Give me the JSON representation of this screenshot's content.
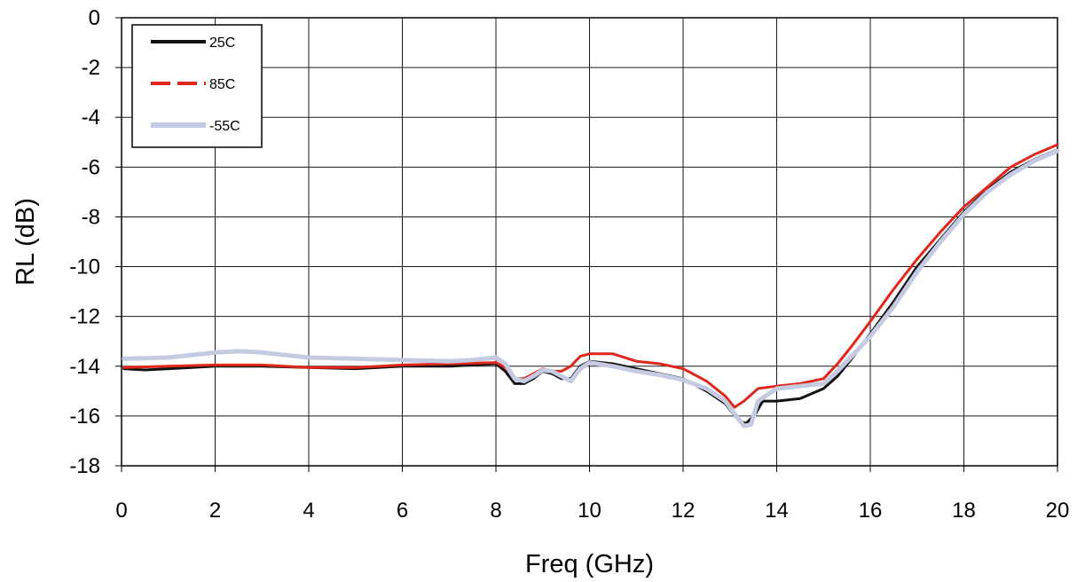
{
  "chart_data": {
    "type": "line",
    "title": "",
    "xlabel": "Freq (GHz)",
    "ylabel": "RL (dB)",
    "xlim": [
      0,
      20
    ],
    "ylim": [
      -18,
      0
    ],
    "x_ticks": [
      0,
      2,
      4,
      6,
      8,
      10,
      12,
      14,
      16,
      18,
      20
    ],
    "y_ticks": [
      0,
      -2,
      -4,
      -6,
      -8,
      -10,
      -12,
      -14,
      -16,
      -18
    ],
    "grid": true,
    "legend_position": "top-left",
    "series": [
      {
        "name": "25C",
        "color": "#111111",
        "style": "solid",
        "points": [
          [
            0.05,
            -14.1
          ],
          [
            0.5,
            -14.15
          ],
          [
            1.0,
            -14.1
          ],
          [
            1.5,
            -14.05
          ],
          [
            2.0,
            -14.0
          ],
          [
            3.0,
            -14.0
          ],
          [
            4.0,
            -14.05
          ],
          [
            5.0,
            -14.1
          ],
          [
            6.0,
            -14.0
          ],
          [
            7.0,
            -14.0
          ],
          [
            7.5,
            -13.95
          ],
          [
            8.0,
            -13.9
          ],
          [
            8.2,
            -14.2
          ],
          [
            8.4,
            -14.7
          ],
          [
            8.6,
            -14.7
          ],
          [
            8.8,
            -14.5
          ],
          [
            9.0,
            -14.2
          ],
          [
            9.2,
            -14.3
          ],
          [
            9.4,
            -14.5
          ],
          [
            9.6,
            -14.5
          ],
          [
            9.8,
            -14.0
          ],
          [
            10.0,
            -13.8
          ],
          [
            10.5,
            -13.9
          ],
          [
            11.0,
            -14.1
          ],
          [
            11.5,
            -14.3
          ],
          [
            12.0,
            -14.5
          ],
          [
            12.5,
            -15.0
          ],
          [
            12.9,
            -15.5
          ],
          [
            13.2,
            -16.2
          ],
          [
            13.35,
            -16.3
          ],
          [
            13.55,
            -15.9
          ],
          [
            13.7,
            -15.4
          ],
          [
            14.0,
            -15.4
          ],
          [
            14.5,
            -15.3
          ],
          [
            15.0,
            -14.9
          ],
          [
            15.3,
            -14.4
          ],
          [
            15.6,
            -13.7
          ],
          [
            16.0,
            -12.7
          ],
          [
            16.5,
            -11.4
          ],
          [
            17.0,
            -10.0
          ],
          [
            17.5,
            -8.9
          ],
          [
            18.0,
            -7.8
          ],
          [
            18.5,
            -6.9
          ],
          [
            19.0,
            -6.2
          ],
          [
            19.5,
            -5.7
          ],
          [
            20.0,
            -5.3
          ]
        ]
      },
      {
        "name": "85C",
        "color": "#e1261c",
        "style": "dashed",
        "points": [
          [
            0.05,
            -14.05
          ],
          [
            1.0,
            -14.0
          ],
          [
            2.0,
            -13.95
          ],
          [
            3.0,
            -13.95
          ],
          [
            4.0,
            -14.05
          ],
          [
            5.0,
            -14.05
          ],
          [
            6.0,
            -13.95
          ],
          [
            7.0,
            -13.9
          ],
          [
            8.0,
            -13.85
          ],
          [
            8.2,
            -14.05
          ],
          [
            8.4,
            -14.5
          ],
          [
            8.6,
            -14.5
          ],
          [
            8.8,
            -14.3
          ],
          [
            9.0,
            -14.1
          ],
          [
            9.2,
            -14.2
          ],
          [
            9.4,
            -14.2
          ],
          [
            9.6,
            -14.0
          ],
          [
            9.8,
            -13.6
          ],
          [
            10.0,
            -13.5
          ],
          [
            10.5,
            -13.5
          ],
          [
            11.0,
            -13.8
          ],
          [
            11.5,
            -13.9
          ],
          [
            12.0,
            -14.1
          ],
          [
            12.5,
            -14.6
          ],
          [
            12.9,
            -15.2
          ],
          [
            13.1,
            -15.65
          ],
          [
            13.3,
            -15.4
          ],
          [
            13.6,
            -14.9
          ],
          [
            14.0,
            -14.8
          ],
          [
            14.5,
            -14.7
          ],
          [
            15.0,
            -14.5
          ],
          [
            15.3,
            -13.9
          ],
          [
            15.6,
            -13.2
          ],
          [
            16.0,
            -12.2
          ],
          [
            16.5,
            -10.9
          ],
          [
            17.0,
            -9.7
          ],
          [
            17.5,
            -8.6
          ],
          [
            18.0,
            -7.6
          ],
          [
            18.5,
            -6.8
          ],
          [
            19.0,
            -6.0
          ],
          [
            19.5,
            -5.5
          ],
          [
            20.0,
            -5.1
          ]
        ]
      },
      {
        "name": "-55C",
        "color": "#c4cae2",
        "style": "solid",
        "points": [
          [
            0.05,
            -13.7
          ],
          [
            1.0,
            -13.65
          ],
          [
            2.0,
            -13.45
          ],
          [
            2.5,
            -13.4
          ],
          [
            3.0,
            -13.45
          ],
          [
            4.0,
            -13.65
          ],
          [
            5.0,
            -13.7
          ],
          [
            6.0,
            -13.75
          ],
          [
            7.0,
            -13.8
          ],
          [
            7.5,
            -13.75
          ],
          [
            8.0,
            -13.65
          ],
          [
            8.2,
            -13.9
          ],
          [
            8.4,
            -14.5
          ],
          [
            8.6,
            -14.6
          ],
          [
            8.8,
            -14.4
          ],
          [
            9.0,
            -14.15
          ],
          [
            9.2,
            -14.2
          ],
          [
            9.4,
            -14.4
          ],
          [
            9.6,
            -14.6
          ],
          [
            9.8,
            -14.1
          ],
          [
            10.0,
            -13.85
          ],
          [
            10.5,
            -14.0
          ],
          [
            11.0,
            -14.2
          ],
          [
            11.5,
            -14.35
          ],
          [
            12.0,
            -14.55
          ],
          [
            12.5,
            -14.9
          ],
          [
            12.9,
            -15.4
          ],
          [
            13.1,
            -15.9
          ],
          [
            13.3,
            -16.4
          ],
          [
            13.45,
            -16.35
          ],
          [
            13.6,
            -15.4
          ],
          [
            14.0,
            -14.9
          ],
          [
            14.5,
            -14.8
          ],
          [
            15.0,
            -14.7
          ],
          [
            15.3,
            -14.2
          ],
          [
            15.6,
            -13.6
          ],
          [
            16.0,
            -12.8
          ],
          [
            16.5,
            -11.6
          ],
          [
            17.0,
            -10.2
          ],
          [
            17.5,
            -9.0
          ],
          [
            18.0,
            -7.9
          ],
          [
            18.5,
            -7.0
          ],
          [
            19.0,
            -6.3
          ],
          [
            19.5,
            -5.75
          ],
          [
            20.0,
            -5.35
          ]
        ]
      }
    ]
  }
}
